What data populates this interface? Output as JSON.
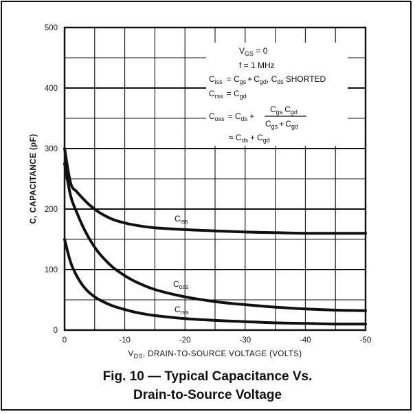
{
  "chart_data": {
    "type": "line",
    "xlabel_main": "DS",
    "xlabel_prefix": "V",
    "xlabel_rest": ", DRAIN-TO-SOURCE VOLTAGE (VOLTS)",
    "ylabel": "C, CAPACITANCE (pF)",
    "xlim": [
      0,
      -50
    ],
    "ylim": [
      0,
      500
    ],
    "x_ticks": [
      "0",
      "-10",
      "-20",
      "-30",
      "-40",
      "-50"
    ],
    "y_ticks": [
      "0",
      "100",
      "200",
      "300",
      "400",
      "500"
    ],
    "grid": true,
    "series": [
      {
        "name": "Ciss",
        "x": [
          0,
          -1,
          -2,
          -3,
          -4,
          -5,
          -6,
          -8,
          -10,
          -12,
          -15,
          -20,
          -25,
          -30,
          -35,
          -40,
          -45,
          -50
        ],
        "values": [
          300,
          243,
          229,
          218,
          208,
          200,
          193,
          183,
          177,
          173,
          169,
          166,
          164,
          162,
          161,
          160,
          160,
          160
        ]
      },
      {
        "name": "Coss",
        "x": [
          0,
          -1,
          -2,
          -3,
          -4,
          -5,
          -6,
          -8,
          -10,
          -12,
          -15,
          -20,
          -25,
          -30,
          -35,
          -40,
          -45,
          -50
        ],
        "values": [
          275,
          222,
          195,
          172,
          153,
          137,
          124,
          104,
          90,
          79,
          67,
          55,
          47,
          42,
          38,
          35,
          33,
          32
        ]
      },
      {
        "name": "Crss",
        "x": [
          0,
          -1,
          -2,
          -3,
          -4,
          -5,
          -6,
          -8,
          -10,
          -12,
          -15,
          -20,
          -25,
          -30,
          -35,
          -40,
          -45,
          -50
        ],
        "values": [
          150,
          112,
          90,
          74,
          63,
          55,
          49,
          40,
          34,
          29,
          24,
          19,
          16,
          14,
          12,
          11,
          10,
          10
        ]
      }
    ],
    "annotations": {
      "vgs": "V",
      "vgs_sub": "GS",
      "vgs_val": " = 0",
      "freq": "f = 1 MHz",
      "ciss_eq": "= C",
      "ciss_eq_tail": ", C",
      "shorted": "SHORTED",
      "crss_eq": "= C",
      "coss_eq": "= C",
      "approx": "≈ C",
      "plus": "+",
      "C": "C",
      "sub_iss": "iss",
      "sub_rss": "rss",
      "sub_oss": "oss",
      "sub_gs": "gs",
      "sub_gd": "gd",
      "sub_ds": "ds"
    }
  },
  "caption": {
    "line1": "Fig. 10 — Typical Capacitance Vs.",
    "line2": "Drain-to-Source Voltage"
  }
}
